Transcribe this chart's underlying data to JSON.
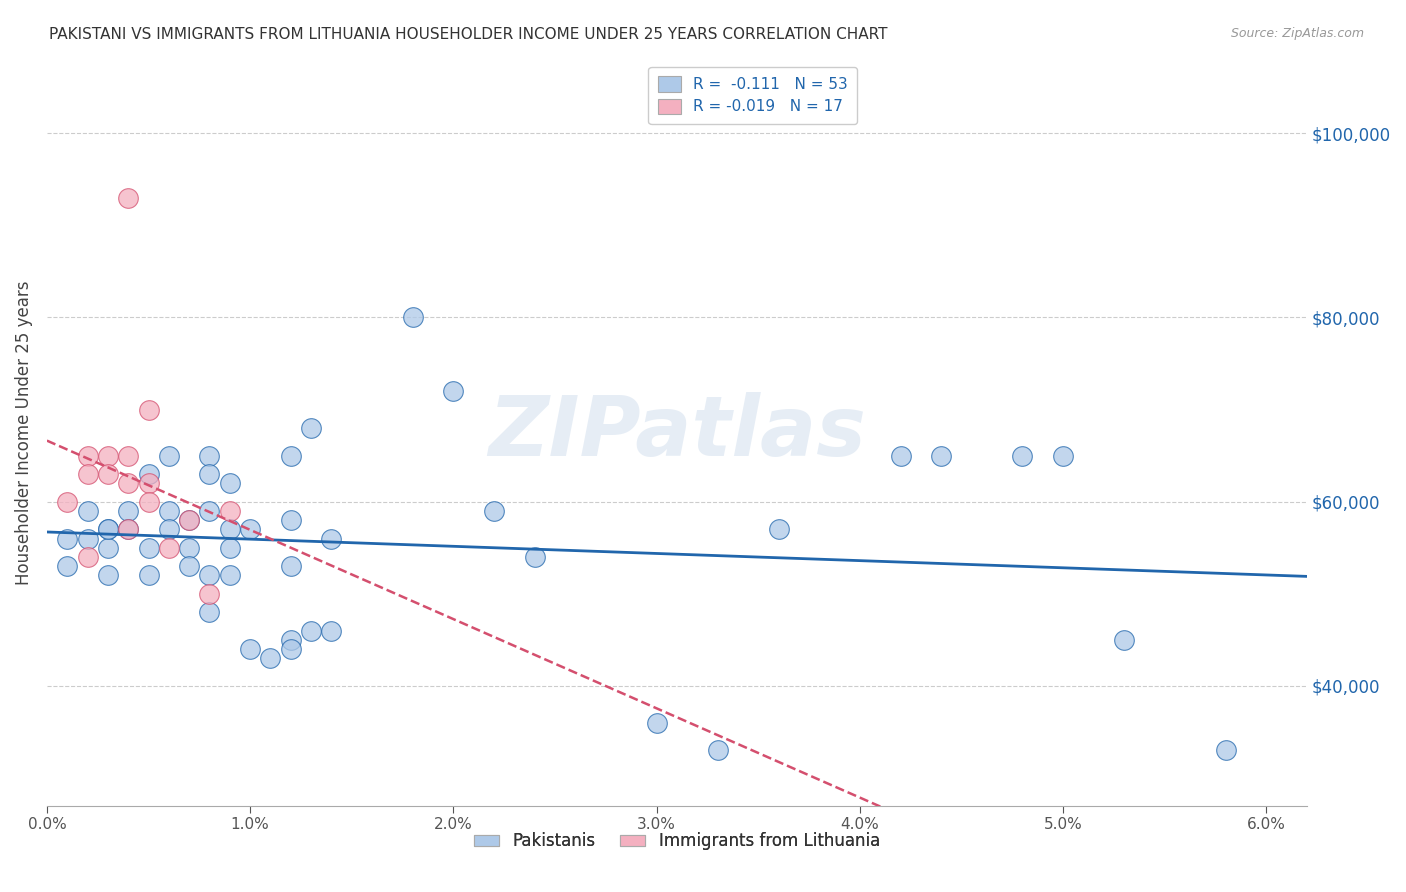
{
  "title": "PAKISTANI VS IMMIGRANTS FROM LITHUANIA HOUSEHOLDER INCOME UNDER 25 YEARS CORRELATION CHART",
  "source": "Source: ZipAtlas.com",
  "ylabel": "Householder Income Under 25 years",
  "xlim": [
    0.0,
    0.062
  ],
  "ylim": [
    27000,
    108000
  ],
  "yticks": [
    40000,
    60000,
    80000,
    100000
  ],
  "ytick_labels": [
    "$40,000",
    "$60,000",
    "$80,000",
    "$100,000"
  ],
  "legend_entries": [
    {
      "label": "R =  -0.111   N = 53",
      "color": "#aec6e8"
    },
    {
      "label": "R = -0.019   N = 17",
      "color": "#f4b8c1"
    }
  ],
  "bottom_legend": [
    "Pakistanis",
    "Immigrants from Lithuania"
  ],
  "blue_line_color": "#2166ac",
  "pink_line_color": "#d44f6e",
  "grid_color": "#cccccc",
  "watermark": "ZIPatlas",
  "pakistani_points": [
    [
      0.001,
      56000
    ],
    [
      0.001,
      53000
    ],
    [
      0.002,
      59000
    ],
    [
      0.002,
      56000
    ],
    [
      0.003,
      57000
    ],
    [
      0.003,
      55000
    ],
    [
      0.003,
      52000
    ],
    [
      0.003,
      57000
    ],
    [
      0.004,
      59000
    ],
    [
      0.004,
      57000
    ],
    [
      0.005,
      55000
    ],
    [
      0.005,
      52000
    ],
    [
      0.005,
      63000
    ],
    [
      0.006,
      59000
    ],
    [
      0.006,
      57000
    ],
    [
      0.006,
      65000
    ],
    [
      0.007,
      58000
    ],
    [
      0.007,
      55000
    ],
    [
      0.007,
      53000
    ],
    [
      0.008,
      65000
    ],
    [
      0.008,
      63000
    ],
    [
      0.008,
      59000
    ],
    [
      0.008,
      52000
    ],
    [
      0.008,
      48000
    ],
    [
      0.009,
      55000
    ],
    [
      0.009,
      62000
    ],
    [
      0.009,
      57000
    ],
    [
      0.009,
      52000
    ],
    [
      0.01,
      57000
    ],
    [
      0.01,
      44000
    ],
    [
      0.011,
      43000
    ],
    [
      0.012,
      65000
    ],
    [
      0.012,
      58000
    ],
    [
      0.012,
      53000
    ],
    [
      0.012,
      45000
    ],
    [
      0.012,
      44000
    ],
    [
      0.013,
      68000
    ],
    [
      0.013,
      46000
    ],
    [
      0.014,
      56000
    ],
    [
      0.014,
      46000
    ],
    [
      0.018,
      80000
    ],
    [
      0.02,
      72000
    ],
    [
      0.022,
      59000
    ],
    [
      0.024,
      54000
    ],
    [
      0.03,
      36000
    ],
    [
      0.033,
      33000
    ],
    [
      0.036,
      57000
    ],
    [
      0.042,
      65000
    ],
    [
      0.044,
      65000
    ],
    [
      0.048,
      65000
    ],
    [
      0.05,
      65000
    ],
    [
      0.053,
      45000
    ],
    [
      0.058,
      33000
    ]
  ],
  "lithuania_points": [
    [
      0.001,
      60000
    ],
    [
      0.002,
      65000
    ],
    [
      0.002,
      63000
    ],
    [
      0.002,
      54000
    ],
    [
      0.003,
      65000
    ],
    [
      0.003,
      63000
    ],
    [
      0.004,
      65000
    ],
    [
      0.004,
      62000
    ],
    [
      0.004,
      57000
    ],
    [
      0.005,
      70000
    ],
    [
      0.005,
      62000
    ],
    [
      0.005,
      60000
    ],
    [
      0.006,
      55000
    ],
    [
      0.007,
      58000
    ],
    [
      0.008,
      50000
    ],
    [
      0.009,
      59000
    ],
    [
      0.004,
      93000
    ]
  ],
  "blue_scatter_color": "#aec9e8",
  "pink_scatter_color": "#f4b0c0",
  "scatter_alpha": 0.75,
  "bubble_size": 200,
  "title_color": "#333333",
  "right_label_color": "#2166ac"
}
